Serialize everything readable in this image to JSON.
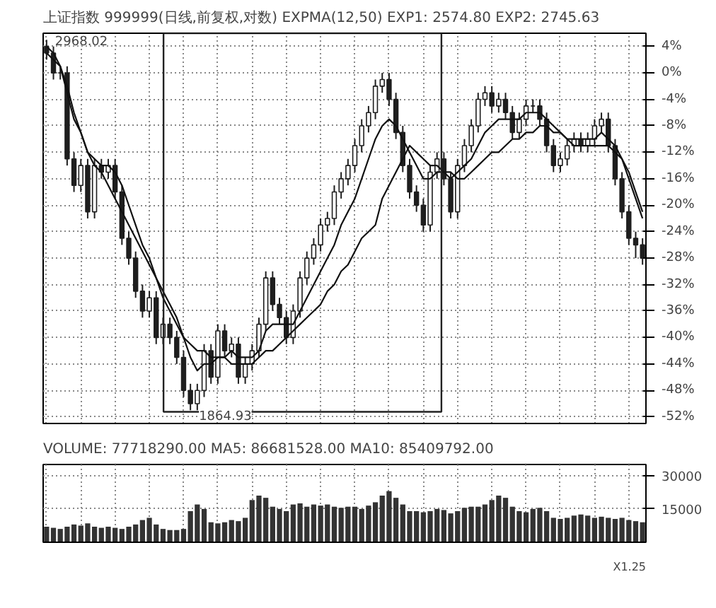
{
  "chart_data": [
    {
      "type": "candlestick",
      "title": "上证指数 999999(日线,前复权,对数) EXPMA(12,50) EXP1: 2574.80 EXP2: 2745.63",
      "grid": true,
      "tick_labels": "y",
      "categories": [
        null,
        null,
        null,
        null,
        null,
        null,
        null,
        null,
        null,
        null,
        null,
        null,
        null,
        null,
        null,
        null,
        null,
        null,
        null,
        null,
        null,
        null,
        null,
        null,
        null,
        null,
        null,
        null,
        null,
        null,
        null,
        null,
        null,
        null,
        null,
        null,
        null,
        null,
        null,
        null,
        null,
        null,
        null,
        null,
        null,
        null,
        null,
        null,
        null,
        null,
        null,
        null,
        null,
        null,
        null,
        null,
        null,
        null,
        null,
        null,
        null,
        null,
        null,
        null,
        null,
        null,
        null,
        null,
        null,
        null,
        null,
        null,
        null,
        null,
        null,
        null,
        null,
        null,
        null,
        null,
        null,
        null,
        null,
        null,
        null,
        null,
        null,
        null
      ],
      "ylim": [
        -53,
        6
      ],
      "yticks": [
        {
          "value": 4,
          "label": "4%"
        },
        {
          "value": 0,
          "label": "0%"
        },
        {
          "value": -4,
          "label": "-4%"
        },
        {
          "value": -8,
          "label": "-8%"
        },
        {
          "value": -12,
          "label": "-12%"
        },
        {
          "value": -16,
          "label": "-16%"
        },
        {
          "value": -20,
          "label": "-20%"
        },
        {
          "value": -24,
          "label": "-24%"
        },
        {
          "value": -28,
          "label": "-28%"
        },
        {
          "value": -32,
          "label": "-32%"
        },
        {
          "value": -36,
          "label": "-36%"
        },
        {
          "value": -40,
          "label": "-40%"
        },
        {
          "value": -44,
          "label": "-44%"
        },
        {
          "value": -48,
          "label": "-48%"
        },
        {
          "value": -52,
          "label": "-52%"
        }
      ],
      "series": [
        {
          "type": "candlestick",
          "color": "#1e1e1e",
          "ohlc": [
            [
              4,
              5,
              2,
              3
            ],
            [
              3,
              4,
              -1,
              0
            ],
            [
              0,
              1,
              -1,
              0
            ],
            [
              0,
              1,
              -14,
              -13
            ],
            [
              -13,
              -12,
              -18,
              -17
            ],
            [
              -17,
              -13,
              -18,
              -14
            ],
            [
              -14,
              -13,
              -22,
              -21
            ],
            [
              -21,
              -13,
              -22,
              -14
            ],
            [
              -14,
              -13,
              -16,
              -15
            ],
            [
              -15,
              -13,
              -16,
              -14
            ],
            [
              -14,
              -13,
              -19,
              -18
            ],
            [
              -18,
              -17,
              -26,
              -25
            ],
            [
              -25,
              -24,
              -29,
              -28
            ],
            [
              -28,
              -27,
              -34,
              -33
            ],
            [
              -33,
              -32,
              -37,
              -36
            ],
            [
              -36,
              -33,
              -37,
              -34
            ],
            [
              -34,
              -33,
              -41,
              -40
            ],
            [
              -40,
              -37,
              -41,
              -38
            ],
            [
              -38,
              -37,
              -41,
              -40
            ],
            [
              -40,
              -39,
              -44,
              -43
            ],
            [
              -43,
              -42,
              -49,
              -48
            ],
            [
              -48,
              -47,
              -51,
              -50
            ],
            [
              -50,
              -47,
              -51,
              -48
            ],
            [
              -48,
              -41,
              -49,
              -42
            ],
            [
              -42,
              -41,
              -47,
              -46
            ],
            [
              -46,
              -38,
              -47,
              -39
            ],
            [
              -39,
              -38,
              -43,
              -42
            ],
            [
              -42,
              -40,
              -43,
              -41
            ],
            [
              -41,
              -40,
              -47,
              -46
            ],
            [
              -46,
              -43,
              -47,
              -44
            ],
            [
              -44,
              -41,
              -45,
              -42
            ],
            [
              -42,
              -37,
              -43,
              -38
            ],
            [
              -38,
              -30,
              -39,
              -31
            ],
            [
              -31,
              -30,
              -36,
              -35
            ],
            [
              -35,
              -34,
              -38,
              -37
            ],
            [
              -37,
              -36,
              -41,
              -40
            ],
            [
              -40,
              -35,
              -41,
              -36
            ],
            [
              -36,
              -30,
              -37,
              -31
            ],
            [
              -31,
              -27,
              -32,
              -28
            ],
            [
              -28,
              -25,
              -29,
              -26
            ],
            [
              -26,
              -22,
              -27,
              -23
            ],
            [
              -23,
              -21,
              -24,
              -22
            ],
            [
              -22,
              -17,
              -23,
              -18
            ],
            [
              -18,
              -15,
              -19,
              -16
            ],
            [
              -16,
              -13,
              -17,
              -14
            ],
            [
              -14,
              -10,
              -15,
              -11
            ],
            [
              -11,
              -7,
              -12,
              -8
            ],
            [
              -8,
              -5,
              -9,
              -6
            ],
            [
              -6,
              -1,
              -7,
              -2
            ],
            [
              -2,
              0,
              -3,
              -1
            ],
            [
              -1,
              0,
              -5,
              -4
            ],
            [
              -4,
              -3,
              -10,
              -9
            ],
            [
              -9,
              -8,
              -15,
              -14
            ],
            [
              -14,
              -13,
              -19,
              -18
            ],
            [
              -18,
              -17,
              -21,
              -20
            ],
            [
              -20,
              -19,
              -24,
              -23
            ],
            [
              -23,
              -14,
              -24,
              -15
            ],
            [
              -15,
              -12,
              -16,
              -13
            ],
            [
              -13,
              -12,
              -17,
              -16
            ],
            [
              -16,
              -15,
              -22,
              -21
            ],
            [
              -21,
              -13,
              -22,
              -14
            ],
            [
              -14,
              -10,
              -15,
              -11
            ],
            [
              -11,
              -7,
              -12,
              -8
            ],
            [
              -8,
              -3,
              -9,
              -4
            ],
            [
              -4,
              -2,
              -5,
              -3
            ],
            [
              -3,
              -2,
              -6,
              -5
            ],
            [
              -5,
              -3,
              -6,
              -4
            ],
            [
              -4,
              -3,
              -7,
              -6
            ],
            [
              -6,
              -5,
              -10,
              -9
            ],
            [
              -9,
              -6,
              -10,
              -7
            ],
            [
              -7,
              -4,
              -8,
              -5
            ],
            [
              -5,
              -4,
              -6,
              -5
            ],
            [
              -5,
              -4,
              -8,
              -7
            ],
            [
              -7,
              -6,
              -12,
              -11
            ],
            [
              -11,
              -10,
              -15,
              -14
            ],
            [
              -14,
              -12,
              -15,
              -13
            ],
            [
              -13,
              -10,
              -14,
              -11
            ],
            [
              -11,
              -9,
              -12,
              -10
            ],
            [
              -10,
              -9,
              -12,
              -11
            ],
            [
              -11,
              -9,
              -12,
              -10
            ],
            [
              -10,
              -7,
              -11,
              -8
            ],
            [
              -8,
              -6,
              -9,
              -7
            ],
            [
              -7,
              -6,
              -12,
              -11
            ],
            [
              -11,
              -10,
              -17,
              -16
            ],
            [
              -16,
              -15,
              -22,
              -21
            ],
            [
              -21,
              -20,
              -26,
              -25
            ],
            [
              -25,
              -24,
              -28,
              -26
            ],
            [
              -26,
              -25,
              -29,
              -28
            ]
          ]
        },
        {
          "type": "line",
          "color": "#111111",
          "values": [
            3,
            2,
            1,
            -3,
            -7,
            -9,
            -12,
            -13,
            -14,
            -14,
            -15,
            -17,
            -20,
            -23,
            -26,
            -28,
            -31,
            -33,
            -35,
            -37,
            -40,
            -43,
            -45,
            -44,
            -44,
            -43,
            -43,
            -42,
            -43,
            -43,
            -43,
            -42,
            -39,
            -38,
            -38,
            -38,
            -38,
            -36,
            -34,
            -32,
            -30,
            -28,
            -26,
            -23,
            -21,
            -19,
            -16,
            -13,
            -10,
            -8,
            -7,
            -8,
            -10,
            -12,
            -14,
            -16,
            -16,
            -15,
            -15,
            -16,
            -15,
            -14,
            -13,
            -11,
            -9,
            -8,
            -7,
            -7,
            -7,
            -7,
            -6,
            -6,
            -6,
            -7,
            -8,
            -9,
            -10,
            -10,
            -10,
            -10,
            -10,
            -9,
            -10,
            -11,
            -13,
            -16,
            -19,
            -22
          ]
        },
        {
          "type": "line",
          "color": "#111111",
          "values": [
            4,
            3,
            1,
            -2,
            -6,
            -9,
            -12,
            -14,
            -15,
            -17,
            -19,
            -21,
            -23,
            -25,
            -27,
            -29,
            -31,
            -34,
            -36,
            -38,
            -40,
            -41,
            -42,
            -42,
            -43,
            -43,
            -43,
            -44,
            -44,
            -44,
            -44,
            -43,
            -42,
            -42,
            -41,
            -40,
            -39,
            -38,
            -37,
            -36,
            -35,
            -33,
            -32,
            -30,
            -29,
            -27,
            -25,
            -24,
            -23,
            -19,
            -17,
            -15,
            -13,
            -11,
            -12,
            -13,
            -14,
            -14,
            -15,
            -15,
            -16,
            -16,
            -15,
            -14,
            -13,
            -12,
            -12,
            -11,
            -10,
            -10,
            -9,
            -9,
            -8,
            -8,
            -9,
            -9,
            -10,
            -11,
            -11,
            -11,
            -11,
            -11,
            -11,
            -12,
            -13,
            -15,
            -18,
            -21
          ]
        }
      ],
      "annotations": [
        "2968.02",
        "1864.93"
      ]
    },
    {
      "type": "bar",
      "title": "VOLUME: 77718290.00 MA5: 86681528.00 MA10: 85409792.00",
      "grid": true,
      "tick_labels": "y",
      "categories": [
        null,
        null,
        null,
        null,
        null,
        null,
        null,
        null,
        null,
        null,
        null,
        null,
        null,
        null,
        null,
        null,
        null,
        null,
        null,
        null,
        null,
        null,
        null,
        null,
        null,
        null,
        null,
        null,
        null,
        null,
        null,
        null,
        null,
        null,
        null,
        null,
        null,
        null,
        null,
        null,
        null,
        null,
        null,
        null,
        null,
        null,
        null,
        null,
        null,
        null,
        null,
        null,
        null,
        null,
        null,
        null,
        null,
        null,
        null,
        null,
        null,
        null,
        null,
        null,
        null,
        null,
        null,
        null,
        null,
        null,
        null,
        null,
        null,
        null,
        null,
        null,
        null,
        null,
        null,
        null,
        null,
        null,
        null,
        null,
        null,
        null,
        null,
        null
      ],
      "ylim": [
        0,
        35000
      ],
      "yticks": [
        15000,
        30000
      ],
      "series": [
        {
          "color": "#333333",
          "values": [
            7000,
            6500,
            6000,
            7000,
            8000,
            7500,
            8500,
            7000,
            6500,
            7000,
            6500,
            6000,
            7000,
            8000,
            10000,
            11000,
            8000,
            6000,
            5500,
            5500,
            6000,
            14000,
            17000,
            15000,
            9000,
            8500,
            9000,
            10000,
            9500,
            11000,
            19000,
            21000,
            20000,
            16000,
            15000,
            14000,
            17000,
            17500,
            16000,
            17000,
            16500,
            17000,
            16000,
            15500,
            16000,
            16000,
            15000,
            16500,
            18000,
            21000,
            23000,
            20000,
            17000,
            14000,
            14000,
            13500,
            14000,
            15000,
            14500,
            13000,
            14000,
            15500,
            16000,
            16000,
            17000,
            19000,
            21000,
            20000,
            16000,
            14000,
            13500,
            15000,
            15500,
            14000,
            11000,
            10500,
            11000,
            12000,
            12500,
            12000,
            11000,
            11500,
            11000,
            10500,
            11000,
            10000,
            9500,
            9000
          ]
        }
      ],
      "annotations": [
        "X1.25"
      ]
    }
  ]
}
